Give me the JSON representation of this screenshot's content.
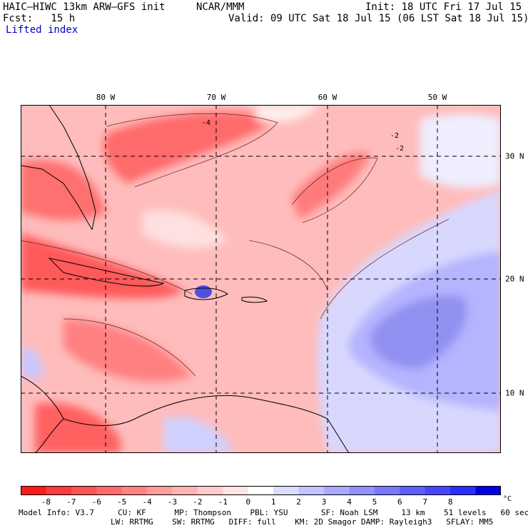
{
  "header": {
    "model": "HAIC–HIWC 13km ARW–GFS init",
    "org": "NCAR/MMM",
    "init": "Init: 18 UTC Fri 17 Jul 15",
    "fcst": "Fcst:   15 h",
    "valid": "Valid: 09 UTC Sat 18 Jul 15 (06 LST Sat 18 Jul 15)",
    "field": "Lifted index"
  },
  "map": {
    "lon_labels": [
      "80 W",
      "70 W",
      "60 W",
      "50 W"
    ],
    "lat_labels": [
      "30 N",
      "20 N",
      "10 N"
    ],
    "contour_labels": [
      "-4",
      "-2",
      "-2"
    ]
  },
  "colorbar": {
    "labels": [
      "-8",
      "-7",
      "-6",
      "-5",
      "-4",
      "-3",
      "-2",
      "-1",
      "0",
      "1",
      "2",
      "3",
      "4",
      "5",
      "6",
      "7",
      "8"
    ],
    "unit": "°C",
    "colors": [
      "#ff1a1a",
      "#ff3a3a",
      "#ff5252",
      "#ff6b6b",
      "#ff8383",
      "#ff9c9c",
      "#ffb4b4",
      "#ffcdcd",
      "#ffe6e6",
      "#ffffff",
      "#dcdcff",
      "#c3c3ff",
      "#aaaaff",
      "#9191ff",
      "#7878ff",
      "#5f5fff",
      "#4646ff",
      "#2d2dff",
      "#0000e6"
    ]
  },
  "footer": {
    "line1": "Model Info: V3.7     CU: KF      MP: Thompson    PBL: YSU       SF: Noah LSM     13 km    51 levels   60 sec",
    "line2": "LW: RRTMG    SW: RRTMG   DIFF: full    KM: 2D Smagor DAMP: Rayleigh3   SFLAY: MM5"
  }
}
